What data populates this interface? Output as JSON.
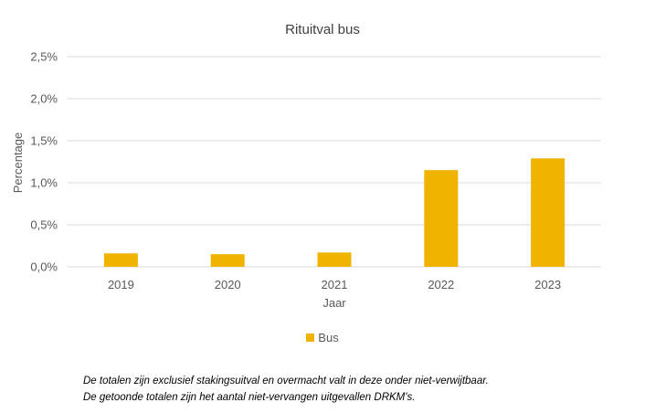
{
  "chart_data": {
    "type": "bar",
    "title": "Rituitval bus",
    "xlabel": "Jaar",
    "ylabel": "Percentage",
    "categories": [
      "2019",
      "2020",
      "2021",
      "2022",
      "2023"
    ],
    "series": [
      {
        "name": "Bus",
        "values": [
          0.0016,
          0.0015,
          0.0017,
          0.0115,
          0.0129
        ],
        "color": "#f0b400"
      }
    ],
    "ylim": [
      0,
      0.025
    ],
    "yticks": [
      "0,0%",
      "0,5%",
      "1,0%",
      "1,5%",
      "2,0%",
      "2,5%"
    ],
    "grid": true,
    "legend": "bottom"
  },
  "footnotes": [
    "De totalen zijn exclusief stakingsuitval en overmacht valt in deze onder niet-verwijtbaar.",
    "De getoonde totalen zijn het aantal niet-vervangen uitgevallen DRKM's."
  ]
}
